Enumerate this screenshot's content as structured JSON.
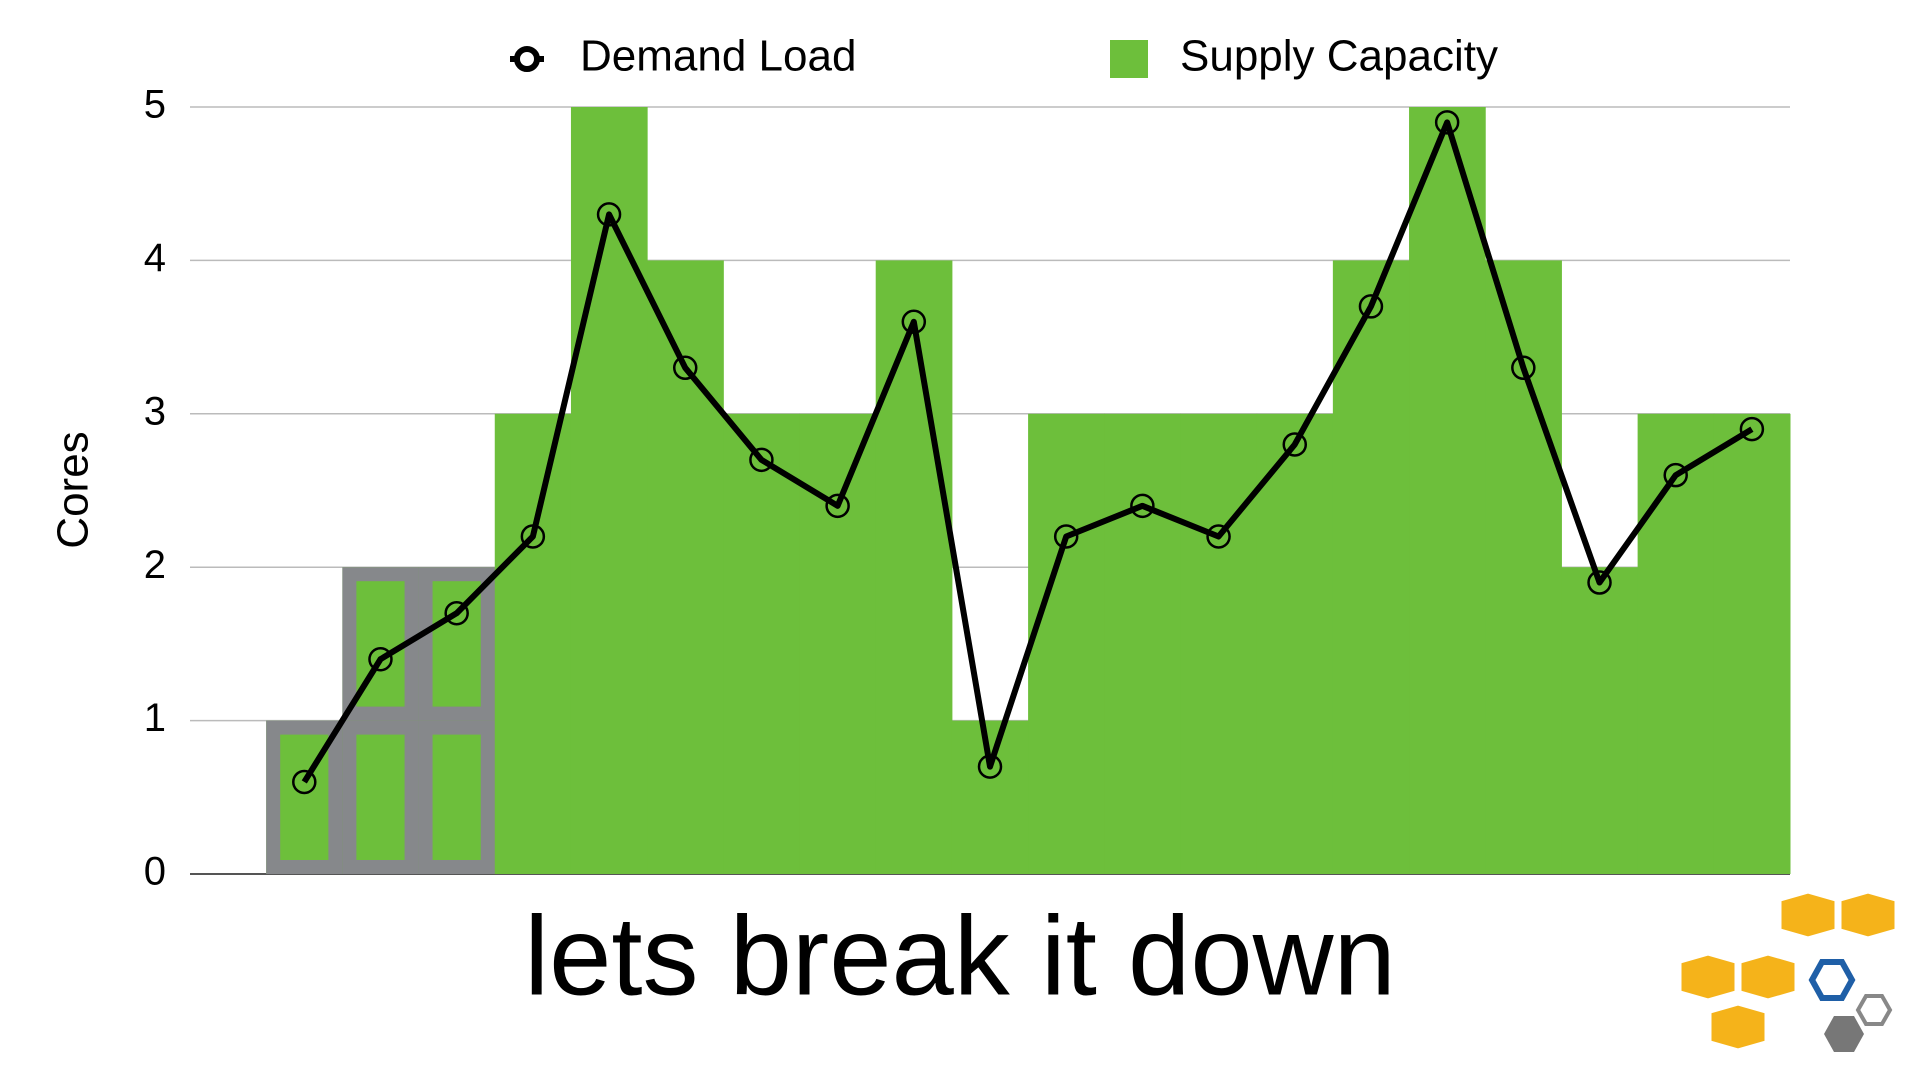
{
  "chart_data": {
    "type": "bar+line",
    "y_label": "Cores",
    "caption": "lets break it down",
    "categories": [
      null,
      null,
      null,
      null,
      null,
      null,
      null,
      null,
      null,
      null,
      null,
      null,
      null,
      null,
      null,
      null,
      null,
      null,
      null,
      null,
      null
    ],
    "series": [
      {
        "name": "Supply Capacity",
        "type": "bar",
        "color": "#6dbf3b",
        "values": [
          null,
          1,
          2,
          2,
          3,
          5,
          4,
          3,
          3,
          4,
          1,
          3,
          3,
          3,
          3,
          4,
          5,
          4,
          2,
          3,
          3
        ]
      },
      {
        "name": "Demand Load",
        "type": "line",
        "color": "#000000",
        "values": [
          null,
          0.6,
          1.4,
          1.7,
          2.2,
          4.3,
          3.3,
          2.7,
          2.4,
          3.6,
          0.7,
          2.2,
          2.4,
          2.2,
          2.8,
          3.7,
          4.9,
          3.3,
          1.9,
          2.6,
          2.9
        ]
      }
    ],
    "ylim": [
      0,
      5
    ],
    "yticks": [
      0,
      1,
      2,
      3,
      4,
      5
    ],
    "grid": true,
    "legend": "top"
  }
}
